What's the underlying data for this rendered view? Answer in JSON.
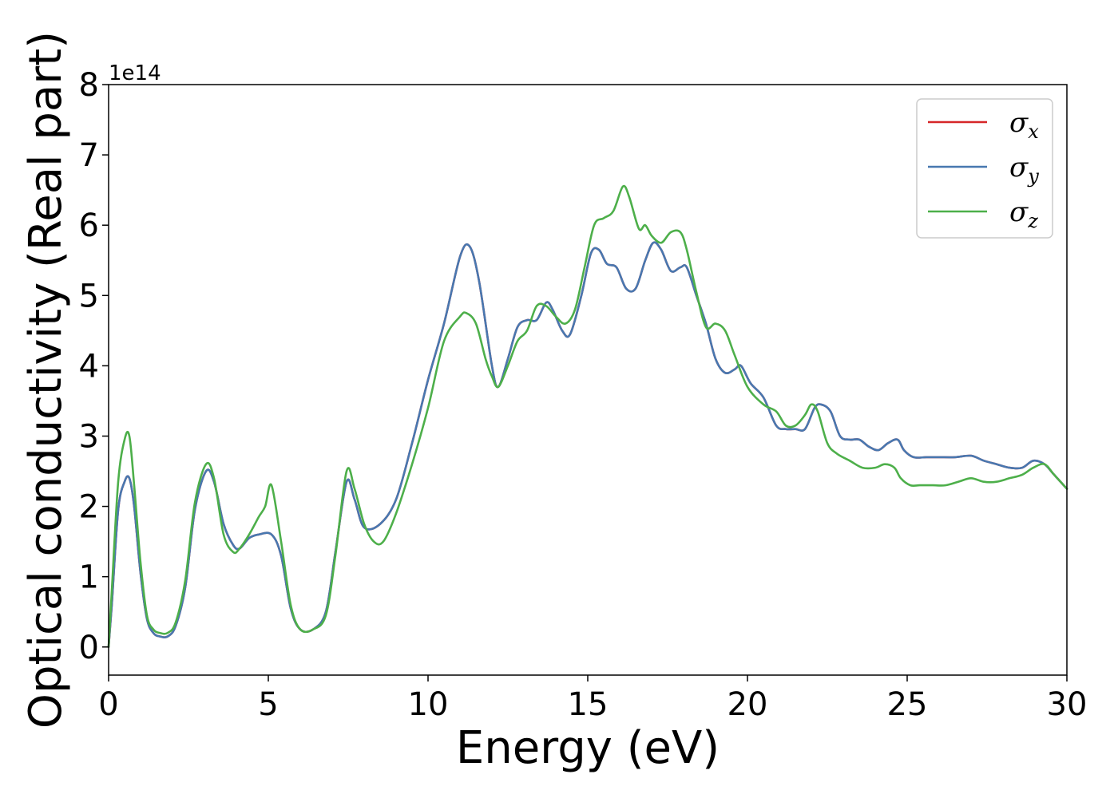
{
  "chart_data": {
    "type": "line",
    "xlabel": "Energy (eV)",
    "ylabel": "Optical conductivity (Real part)",
    "y_offset_label": "1e14",
    "xlim": [
      0,
      30
    ],
    "ylim": [
      -0.4,
      8
    ],
    "x_ticks": [
      0,
      5,
      10,
      15,
      20,
      25,
      30
    ],
    "y_ticks": [
      0,
      1,
      2,
      3,
      4,
      5,
      6,
      7,
      8
    ],
    "grid": false,
    "legend_position": "top-right",
    "series": [
      {
        "name": "σx",
        "symbol": "σ",
        "subscript": "x",
        "color": "#d62728",
        "x": [
          0.0,
          0.1,
          0.3,
          0.5,
          0.65,
          0.8,
          1.0,
          1.2,
          1.4,
          1.6,
          1.85,
          2.1,
          2.4,
          2.7,
          3.05,
          3.3,
          3.6,
          3.9,
          4.1,
          4.4,
          4.7,
          5.1,
          5.4,
          5.7,
          6.0,
          6.4,
          6.8,
          7.1,
          7.45,
          7.7,
          8.0,
          8.5,
          9.0,
          9.5,
          10.0,
          10.5,
          11.0,
          11.3,
          11.6,
          12.0,
          12.2,
          12.5,
          12.8,
          13.1,
          13.4,
          13.7,
          13.9,
          14.2,
          14.45,
          14.8,
          15.1,
          15.35,
          15.6,
          15.9,
          16.2,
          16.5,
          16.8,
          17.05,
          17.3,
          17.6,
          17.9,
          18.1,
          18.4,
          18.7,
          19.0,
          19.3,
          19.6,
          19.8,
          20.1,
          20.5,
          20.9,
          21.2,
          21.5,
          21.8,
          22.1,
          22.3,
          22.6,
          22.9,
          23.2,
          23.5,
          23.8,
          24.1,
          24.4,
          24.7,
          24.9,
          25.2,
          25.6,
          26.0,
          26.5,
          27.0,
          27.4,
          27.8,
          28.2,
          28.6,
          28.95,
          29.3,
          29.6,
          30.0
        ],
        "values": [
          0.0,
          0.6,
          1.95,
          2.35,
          2.4,
          2.0,
          1.05,
          0.4,
          0.2,
          0.15,
          0.15,
          0.3,
          0.85,
          1.95,
          2.5,
          2.35,
          1.75,
          1.45,
          1.4,
          1.55,
          1.6,
          1.6,
          1.3,
          0.55,
          0.25,
          0.25,
          0.5,
          1.35,
          2.35,
          2.1,
          1.7,
          1.75,
          2.1,
          2.9,
          3.8,
          4.6,
          5.55,
          5.7,
          5.2,
          4.0,
          3.7,
          4.1,
          4.55,
          4.65,
          4.65,
          4.9,
          4.8,
          4.5,
          4.45,
          5.0,
          5.6,
          5.65,
          5.45,
          5.4,
          5.1,
          5.1,
          5.5,
          5.75,
          5.65,
          5.35,
          5.4,
          5.4,
          5.0,
          4.6,
          4.1,
          3.9,
          3.95,
          4.0,
          3.75,
          3.55,
          3.15,
          3.1,
          3.1,
          3.1,
          3.4,
          3.45,
          3.35,
          3.0,
          2.95,
          2.95,
          2.85,
          2.8,
          2.9,
          2.95,
          2.8,
          2.7,
          2.7,
          2.7,
          2.7,
          2.72,
          2.65,
          2.6,
          2.55,
          2.55,
          2.65,
          2.6,
          2.45,
          2.25
        ]
      },
      {
        "name": "σy",
        "symbol": "σ",
        "subscript": "y",
        "color": "#4878b0",
        "x": [
          0.0,
          0.1,
          0.3,
          0.5,
          0.65,
          0.8,
          1.0,
          1.2,
          1.4,
          1.6,
          1.85,
          2.1,
          2.4,
          2.7,
          3.05,
          3.3,
          3.6,
          3.9,
          4.1,
          4.4,
          4.7,
          5.1,
          5.4,
          5.7,
          6.0,
          6.4,
          6.8,
          7.1,
          7.45,
          7.7,
          8.0,
          8.5,
          9.0,
          9.5,
          10.0,
          10.5,
          11.0,
          11.3,
          11.6,
          12.0,
          12.2,
          12.5,
          12.8,
          13.1,
          13.4,
          13.7,
          13.9,
          14.2,
          14.45,
          14.8,
          15.1,
          15.35,
          15.6,
          15.9,
          16.2,
          16.5,
          16.8,
          17.05,
          17.3,
          17.6,
          17.9,
          18.1,
          18.4,
          18.7,
          19.0,
          19.3,
          19.6,
          19.8,
          20.1,
          20.5,
          20.9,
          21.2,
          21.5,
          21.8,
          22.1,
          22.3,
          22.6,
          22.9,
          23.2,
          23.5,
          23.8,
          24.1,
          24.4,
          24.7,
          24.9,
          25.2,
          25.6,
          26.0,
          26.5,
          27.0,
          27.4,
          27.8,
          28.2,
          28.6,
          28.95,
          29.3,
          29.6,
          30.0
        ],
        "values": [
          0.0,
          0.6,
          1.95,
          2.35,
          2.4,
          2.0,
          1.05,
          0.4,
          0.2,
          0.15,
          0.15,
          0.3,
          0.85,
          1.95,
          2.5,
          2.35,
          1.75,
          1.45,
          1.4,
          1.55,
          1.6,
          1.6,
          1.3,
          0.55,
          0.25,
          0.25,
          0.5,
          1.35,
          2.35,
          2.1,
          1.7,
          1.75,
          2.1,
          2.9,
          3.8,
          4.6,
          5.55,
          5.7,
          5.2,
          4.0,
          3.7,
          4.1,
          4.55,
          4.65,
          4.65,
          4.9,
          4.8,
          4.5,
          4.45,
          5.0,
          5.6,
          5.65,
          5.45,
          5.4,
          5.1,
          5.1,
          5.5,
          5.75,
          5.65,
          5.35,
          5.4,
          5.4,
          5.0,
          4.6,
          4.1,
          3.9,
          3.95,
          4.0,
          3.75,
          3.55,
          3.15,
          3.1,
          3.1,
          3.1,
          3.4,
          3.45,
          3.35,
          3.0,
          2.95,
          2.95,
          2.85,
          2.8,
          2.9,
          2.95,
          2.8,
          2.7,
          2.7,
          2.7,
          2.7,
          2.72,
          2.65,
          2.6,
          2.55,
          2.55,
          2.65,
          2.6,
          2.45,
          2.25
        ]
      },
      {
        "name": "σz",
        "symbol": "σ",
        "subscript": "z",
        "color": "#4daf4a",
        "x": [
          0.0,
          0.1,
          0.3,
          0.5,
          0.65,
          0.8,
          1.0,
          1.2,
          1.4,
          1.6,
          1.85,
          2.1,
          2.4,
          2.7,
          3.05,
          3.3,
          3.6,
          3.9,
          4.1,
          4.4,
          4.7,
          4.9,
          5.1,
          5.4,
          5.7,
          6.0,
          6.4,
          6.8,
          7.1,
          7.45,
          7.7,
          8.0,
          8.3,
          8.6,
          9.0,
          9.5,
          10.0,
          10.5,
          11.0,
          11.2,
          11.5,
          11.8,
          12.0,
          12.2,
          12.5,
          12.8,
          13.1,
          13.4,
          13.7,
          14.0,
          14.3,
          14.6,
          14.9,
          15.2,
          15.5,
          15.8,
          16.1,
          16.3,
          16.6,
          16.8,
          17.0,
          17.3,
          17.6,
          17.9,
          18.1,
          18.4,
          18.7,
          19.0,
          19.3,
          19.6,
          20.0,
          20.5,
          20.9,
          21.2,
          21.5,
          21.8,
          22.0,
          22.2,
          22.5,
          22.8,
          23.2,
          23.6,
          24.0,
          24.3,
          24.6,
          24.8,
          25.1,
          25.4,
          25.8,
          26.2,
          26.6,
          27.0,
          27.4,
          27.8,
          28.2,
          28.6,
          28.95,
          29.3,
          29.6,
          30.0
        ],
        "values": [
          0.0,
          0.8,
          2.35,
          2.95,
          3.0,
          2.3,
          1.2,
          0.45,
          0.25,
          0.2,
          0.2,
          0.35,
          0.95,
          2.05,
          2.6,
          2.4,
          1.6,
          1.35,
          1.4,
          1.6,
          1.85,
          2.0,
          2.3,
          1.5,
          0.6,
          0.25,
          0.25,
          0.45,
          1.3,
          2.5,
          2.25,
          1.75,
          1.5,
          1.5,
          1.9,
          2.6,
          3.4,
          4.35,
          4.7,
          4.75,
          4.6,
          4.1,
          3.85,
          3.7,
          4.0,
          4.35,
          4.5,
          4.85,
          4.85,
          4.7,
          4.6,
          4.8,
          5.4,
          6.0,
          6.1,
          6.2,
          6.55,
          6.4,
          5.95,
          6.0,
          5.85,
          5.75,
          5.9,
          5.9,
          5.65,
          5.05,
          4.55,
          4.6,
          4.5,
          4.15,
          3.7,
          3.45,
          3.35,
          3.15,
          3.15,
          3.3,
          3.45,
          3.35,
          2.9,
          2.75,
          2.65,
          2.55,
          2.55,
          2.6,
          2.55,
          2.4,
          2.3,
          2.3,
          2.3,
          2.3,
          2.35,
          2.4,
          2.35,
          2.35,
          2.4,
          2.45,
          2.55,
          2.6,
          2.45,
          2.25
        ]
      }
    ]
  }
}
